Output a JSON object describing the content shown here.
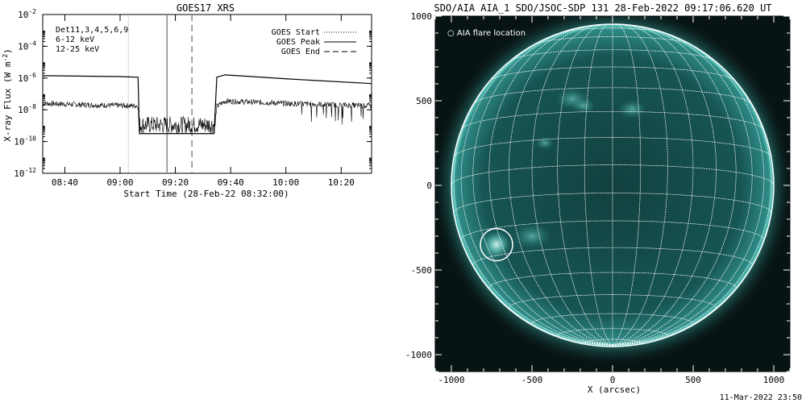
{
  "footer_timestamp": "11-Mar-2022 23:50",
  "chart_data": [
    {
      "type": "line",
      "title": "GOES17 XRS",
      "xlabel": "Start Time (28-Feb-22 08:32:00)",
      "ylabel": "X-ray Flux (W m",
      "ylabel_sup": "-2",
      "ylabel_close": ")",
      "x_tick_labels": [
        "08:40",
        "09:00",
        "09:20",
        "09:40",
        "10:00",
        "10:20"
      ],
      "x_tick_minutes": [
        520,
        540,
        560,
        580,
        600,
        620
      ],
      "xlim_minutes": [
        512,
        631
      ],
      "y_log": true,
      "ylim_exp": [
        -12,
        -2
      ],
      "y_tick_base": "10",
      "y_tick_exps": [
        "-12",
        "-10",
        "-8",
        "-6",
        "-4",
        "-2"
      ],
      "legend_top_left": {
        "det": "Det11,3,4,5,6,9",
        "low": "6-12 keV",
        "high": "12-25 keV",
        "low_color": "#ff00ff",
        "high_color": "#00cc00"
      },
      "legend_top_right": [
        {
          "label": "GOES Start",
          "style": "dotted"
        },
        {
          "label": "GOES Peak",
          "style": "solid"
        },
        {
          "label": "GOES End",
          "style": "dashed"
        }
      ],
      "markers_minutes": {
        "start": 543,
        "peak": 557,
        "end": 566
      },
      "series": [
        {
          "key": "long",
          "points": [
            [
              512,
              -5.85
            ],
            [
              540,
              -5.91
            ],
            [
              546.5,
              -5.95
            ],
            [
              547,
              -9.5
            ],
            [
              574,
              -9.5
            ],
            [
              575,
              -5.95
            ],
            [
              578,
              -5.8
            ],
            [
              600,
              -6.05
            ],
            [
              631,
              -6.35
            ]
          ]
        },
        {
          "key": "short",
          "points": [
            [
              512,
              -7.6
            ],
            [
              530,
              -7.7
            ],
            [
              546.5,
              -7.75
            ],
            [
              547,
              -9.5
            ],
            [
              574,
              -9.5
            ],
            [
              575,
              -7.8
            ],
            [
              578,
              -7.45
            ],
            [
              600,
              -7.6
            ],
            [
              631,
              -7.75
            ]
          ]
        }
      ]
    },
    {
      "type": "image",
      "title": "SDO/AIA AIA_1 SDO/JSOC-SDP 131 28-Feb-2022 09:17:06.620 UT",
      "xlabel": "X (arcsec)",
      "legend": "AIA flare location",
      "x_tick_labels": [
        "-1000",
        "-500",
        "0",
        "500",
        "1000"
      ],
      "x_ticks": [
        -1000,
        -500,
        0,
        500,
        1000
      ],
      "y_tick_labels": [
        "1000",
        "500",
        "0",
        "-500",
        "-1000"
      ],
      "y_ticks": [
        1000,
        500,
        0,
        -500,
        -1000
      ],
      "xlim": [
        -1100,
        1100
      ],
      "ylim": [
        -1100,
        1000
      ],
      "solar_radius_arcsec": 1000,
      "disk_color": "#1a6a68",
      "limb_color": "#7ef0e4",
      "flare_location_arcsec": [
        -720,
        -350
      ],
      "flare_circle_radius_arcsec": 100
    }
  ]
}
